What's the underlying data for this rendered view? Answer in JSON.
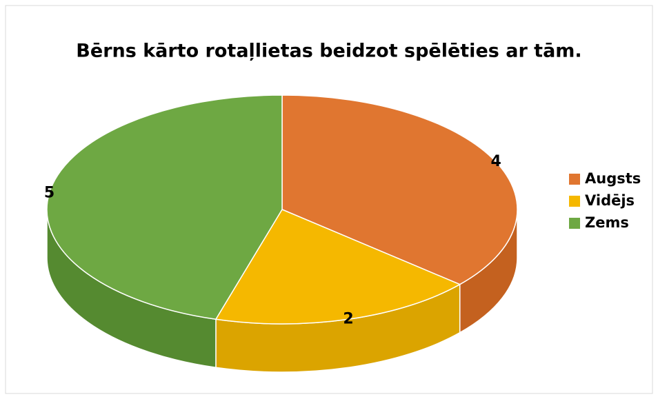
{
  "chart_data": {
    "type": "pie",
    "title": "Bērns kārto rotaļlietas beidzot spēlēties ar tām.",
    "categories": [
      "Augsts",
      "Vidējs",
      "Zems"
    ],
    "values": [
      4,
      2,
      5
    ],
    "colors": [
      "#e07630",
      "#f5b800",
      "#6ea843"
    ],
    "side_colors": [
      "#c4611f",
      "#dba400",
      "#558a30"
    ],
    "legend": "right"
  }
}
